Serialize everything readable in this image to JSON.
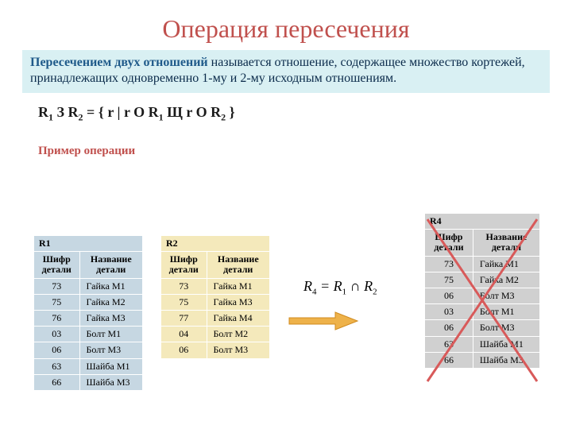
{
  "title": "Операция пересечения",
  "definition": {
    "lead": "Пересечением двух отношений",
    "rest": " называется отношение, содержащее множество кортежей, принадлежащих одновременно 1-му и 2-му исходным отношениям."
  },
  "formula": {
    "text_html": "R<sub>1</sub> З R<sub>2</sub> = { r | r O R<sub>1</sub> Щ r O R<sub>2</sub> }"
  },
  "example_label": "Пример операции",
  "equation_html": "R<sub>4</sub> = R<sub>1</sub> ∩ R<sub>2</sub>",
  "arrow": {
    "color": "#eeb24a",
    "stroke": "#d08b1f"
  },
  "cross": {
    "color": "#d85a5a",
    "width": 3
  },
  "tables": {
    "R1": {
      "title": "R1",
      "headers": [
        "Шифр детали",
        "Название детали"
      ],
      "header_bg": "#c6d7e2",
      "row_bg": "#c6d7e2",
      "rows": [
        [
          "73",
          "Гайка М1"
        ],
        [
          "75",
          "Гайка М2"
        ],
        [
          "76",
          "Гайка М3"
        ],
        [
          "03",
          "Болт М1"
        ],
        [
          "06",
          "Болт М3"
        ],
        [
          "63",
          "Шайба М1"
        ],
        [
          "66",
          "Шайба М3"
        ]
      ]
    },
    "R2": {
      "title": "R2",
      "headers": [
        "Шифр детали",
        "Название детали"
      ],
      "header_bg": "#f4e9bb",
      "row_bg": "#f4e9bb",
      "rows": [
        [
          "73",
          "Гайка М1"
        ],
        [
          "75",
          "Гайка М3"
        ],
        [
          "77",
          "Гайка М4"
        ],
        [
          "04",
          "Болт М2"
        ],
        [
          "06",
          "Болт М3"
        ]
      ]
    },
    "R4": {
      "title": "R4",
      "headers": [
        "Шифр детали",
        "Название детали"
      ],
      "header_bg": "#d0d0d0",
      "row_bg": "#d0d0d0",
      "rows": [
        [
          "73",
          "Гайка М1"
        ],
        [
          "75",
          "Гайка М2"
        ],
        [
          "06",
          "Болт М3"
        ],
        [
          "03",
          "Болт М1"
        ],
        [
          "06",
          "Болт М3"
        ],
        [
          "63",
          "Шайба М1"
        ],
        [
          "66",
          "Шайба М3"
        ]
      ]
    }
  }
}
